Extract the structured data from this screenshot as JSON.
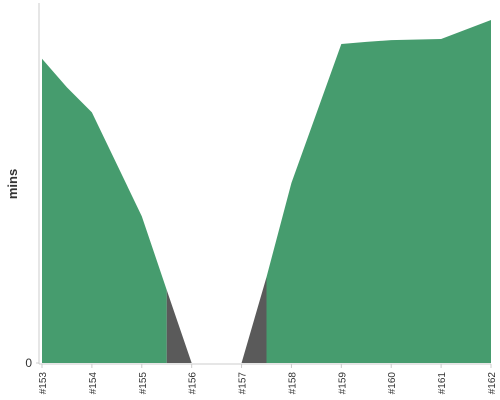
{
  "chart_data": {
    "type": "area",
    "y_label": "mins",
    "x": [
      153,
      153.5,
      154,
      155,
      155.5,
      156,
      157,
      157.5,
      158,
      159,
      159.5,
      160,
      161,
      162
    ],
    "series": [
      {
        "color": "#469c6e",
        "values": [
          85,
          77,
          70,
          41,
          20.4,
          null,
          null,
          24,
          50.3,
          89.1,
          89.7,
          90.2,
          90.5,
          95.8
        ]
      },
      {
        "color": "#5a5a5a",
        "values": [
          null,
          null,
          null,
          null,
          20.4,
          0,
          0,
          24,
          null,
          null,
          null,
          null,
          null,
          null
        ]
      }
    ],
    "xlim": [
      153,
      162
    ],
    "xticks": [
      {
        "value": 153,
        "label": "#153"
      },
      {
        "value": 154,
        "label": "#154"
      },
      {
        "value": 155,
        "label": "#155"
      },
      {
        "value": 156,
        "label": "#156"
      },
      {
        "value": 157,
        "label": "#157"
      },
      {
        "value": 158,
        "label": "#158"
      },
      {
        "value": 159,
        "label": "#159"
      },
      {
        "value": 160,
        "label": "#160"
      },
      {
        "value": 161,
        "label": "#161"
      },
      {
        "value": 162,
        "label": "#162"
      }
    ],
    "ylim": [
      0,
      100
    ],
    "yticks": [
      0
    ]
  }
}
